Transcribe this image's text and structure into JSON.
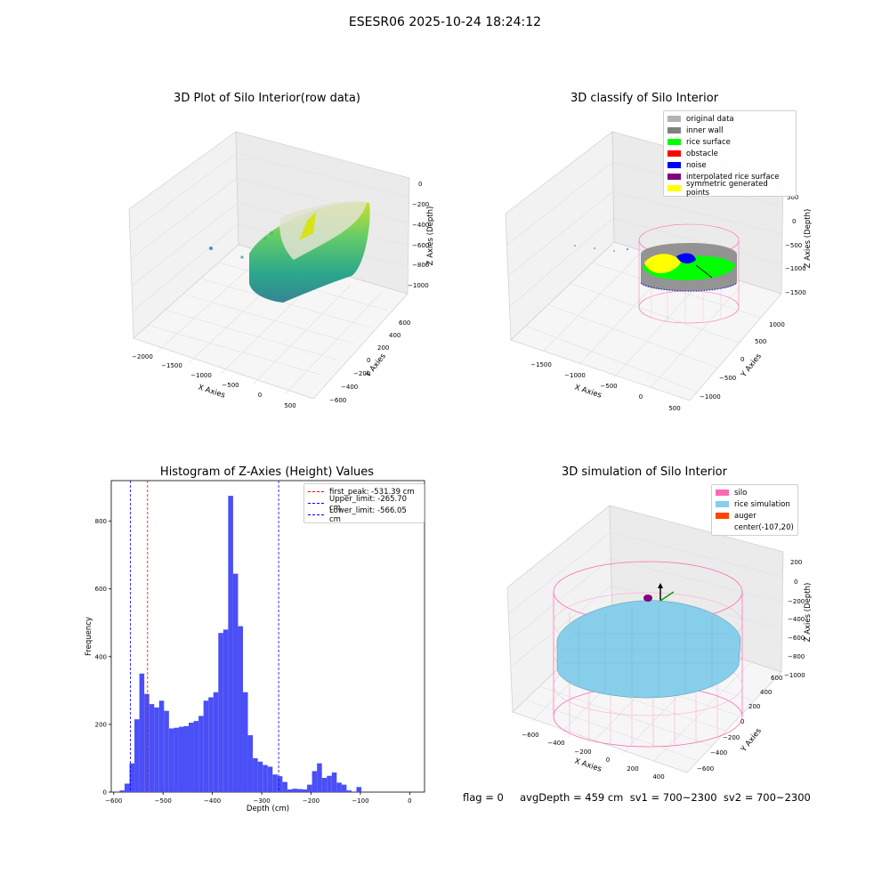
{
  "main_title": "ESESR06 2025-10-24 18:24:12",
  "status_line": "flag = 0     avgDepth = 459 cm  sv1 = 700~2300  sv2 = 700~2300",
  "colors": {
    "hist_bar": "#4a4ff6",
    "first_peak_line": "#ff0000",
    "limit_line": "#0000ff",
    "silo": "#ff69b4",
    "rice_simulation": "#87ceeb",
    "auger": "#ff4500"
  },
  "panels": {
    "raw": {
      "title": "3D Plot of Silo Interior(row data)",
      "xlabel": "X Axies",
      "ylabel": "Y Axies",
      "zlabel": "Z Axies (Depth)",
      "xticks": [
        "−2000",
        "−1500",
        "−1000",
        "−500",
        "0",
        "500"
      ],
      "yticks": [
        "−600",
        "−400",
        "−200",
        "0",
        "200",
        "400",
        "600"
      ],
      "zticks": [
        "0",
        "−200",
        "−400",
        "−600",
        "−800",
        "−1000"
      ],
      "colormap": "viridis"
    },
    "classify": {
      "title": "3D classify of Silo Interior",
      "xlabel": "X Axies",
      "ylabel": "Y Axies",
      "zlabel": "Z Axies (Depth)",
      "xticks": [
        "−1500",
        "−1000",
        "−500",
        "0",
        "500"
      ],
      "yticks": [
        "−1000",
        "−500",
        "0",
        "500",
        "1000"
      ],
      "zticks": [
        "500",
        "0",
        "−500",
        "−1000",
        "−1500"
      ],
      "legend": [
        {
          "label": "original data",
          "color": "#b3b3b3"
        },
        {
          "label": "inner wall",
          "color": "#808080"
        },
        {
          "label": "rice surface",
          "color": "#00ff00"
        },
        {
          "label": "obstacle",
          "color": "#ff0000"
        },
        {
          "label": "noise",
          "color": "#0000ff"
        },
        {
          "label": "interpolated rice surface",
          "color": "#800080"
        },
        {
          "label": "symmetric generated points",
          "color": "#ffff00"
        }
      ]
    },
    "simulation": {
      "title": "3D simulation of Silo Interior",
      "xlabel": "X Axies",
      "ylabel": "Y Axies",
      "zlabel": "Z Axies (Depth)",
      "xticks": [
        "−600",
        "−400",
        "−200",
        "0",
        "200",
        "400"
      ],
      "yticks": [
        "−600",
        "−400",
        "−200",
        "0",
        "200",
        "400",
        "600"
      ],
      "zticks": [
        "200",
        "0",
        "−200",
        "−400",
        "−600",
        "−800",
        "−1000"
      ],
      "legend": [
        {
          "label": "silo",
          "color": "#ff69b4"
        },
        {
          "label": "rice simulation",
          "color": "#87ceeb"
        },
        {
          "label": "auger",
          "color": "#ff4500"
        },
        {
          "label": "center(-107,20)",
          "color": ""
        }
      ]
    }
  },
  "chart_data": {
    "type": "bar",
    "title": "Histogram of Z-Axies (Height) Values",
    "xlabel": "Depth (cm)",
    "ylabel": "Frequency",
    "xlim": [
      -605,
      30
    ],
    "ylim": [
      0,
      920
    ],
    "xticks": [
      -600,
      -500,
      -400,
      -300,
      -200,
      -100,
      0
    ],
    "yticks": [
      0,
      200,
      400,
      600,
      800
    ],
    "bin_start": -588,
    "bin_width": 10,
    "values": [
      5,
      25,
      85,
      215,
      350,
      290,
      260,
      250,
      270,
      240,
      188,
      190,
      193,
      195,
      205,
      210,
      225,
      270,
      280,
      295,
      470,
      480,
      875,
      645,
      490,
      295,
      168,
      100,
      90,
      80,
      75,
      52,
      47,
      30,
      8,
      10,
      9,
      8,
      22,
      62,
      85,
      42,
      48,
      58,
      28,
      22,
      5,
      0,
      15
    ],
    "vlines": [
      {
        "label": "first_peak: -531.39 cm",
        "x": -531.39,
        "color": "#ff0000"
      },
      {
        "label": "Upper_limit: -265.70 cm",
        "x": -265.7,
        "color": "#0000ff"
      },
      {
        "label": "Lower_limit: -566.05 cm",
        "x": -566.05,
        "color": "#0000ff"
      }
    ],
    "legend_position": "top-right",
    "grid": false
  }
}
